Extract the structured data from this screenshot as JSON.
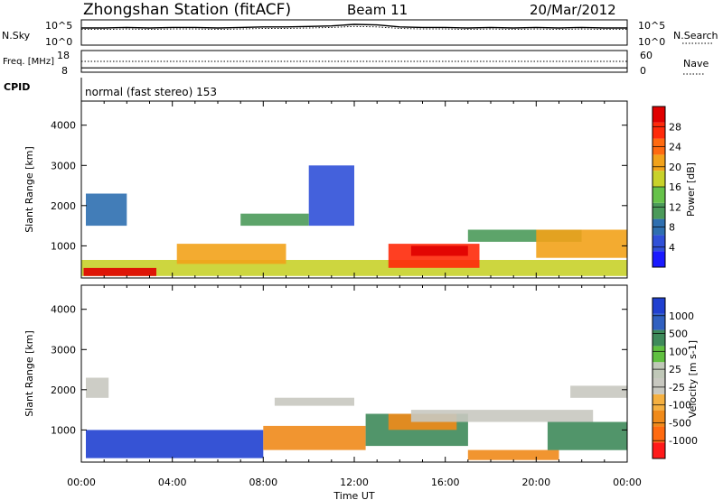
{
  "header": {
    "station": "Zhongshan Station (fitACF)",
    "beam": "Beam 11",
    "date": "20/Mar/2012",
    "cpid_label": "CPID",
    "cpid_value": "normal (fast stereo) 153"
  },
  "colors": {
    "power_scale": [
      "#1a1aff",
      "#3050d8",
      "#2e6fb0",
      "#4b9a5a",
      "#66c24a",
      "#c8d22a",
      "#f2a21a",
      "#ff6a10",
      "#ff2a0a",
      "#e00000"
    ],
    "velocity_scale": [
      "#ff1a1a",
      "#ff6a10",
      "#f08a1a",
      "#f5b040",
      "#c8c8c0",
      "#c0c8b8",
      "#60c040",
      "#3e8a5a",
      "#3060c0",
      "#2040d0"
    ]
  },
  "chart_data": [
    {
      "type": "line",
      "name": "nsky-nsearch-panel",
      "left_label": "N.Sky",
      "right_label": "N.Search",
      "left_ticks": [
        "10^5",
        "10^0"
      ],
      "right_ticks": [
        "10^5",
        "10^0"
      ],
      "series": [
        {
          "name": "N.Sky",
          "values": [
            3.4,
            3.4,
            3.5,
            3.4,
            3.5,
            3.5,
            3.4,
            3.5,
            3.6,
            3.6,
            3.7,
            3.8,
            4.1,
            4.0,
            3.6,
            3.5,
            3.5,
            3.4,
            3.5,
            3.4,
            3.5,
            3.4,
            3.5,
            3.4,
            3.4
          ]
        },
        {
          "name": "N.Search",
          "values": [
            3.1,
            3.1,
            3.2,
            3.1,
            3.2,
            3.2,
            3.1,
            3.2,
            3.3,
            3.3,
            3.4,
            3.5,
            3.7,
            3.6,
            3.3,
            3.2,
            3.2,
            3.1,
            3.2,
            3.1,
            3.2,
            3.1,
            3.2,
            3.1,
            3.1
          ]
        }
      ],
      "x": [
        0,
        1,
        2,
        3,
        4,
        5,
        6,
        7,
        8,
        9,
        10,
        11,
        12,
        13,
        14,
        15,
        16,
        17,
        18,
        19,
        20,
        21,
        22,
        23,
        24
      ],
      "ylim": [
        0,
        5
      ]
    },
    {
      "type": "line",
      "name": "freq-nave-panel",
      "left_label": "Freq. [MHz]",
      "right_label": "Nave",
      "left_ticks": [
        "18",
        "8"
      ],
      "right_ticks": [
        "60",
        "0"
      ],
      "series": [
        {
          "name": "Freq",
          "values": [
            10,
            10,
            10,
            10,
            10,
            10,
            10,
            10,
            10,
            10,
            10,
            10,
            10,
            10,
            10,
            10,
            10,
            10,
            10,
            10,
            10,
            10,
            10,
            10,
            10
          ]
        },
        {
          "name": "Nave",
          "values": [
            30,
            30,
            30,
            30,
            30,
            30,
            30,
            30,
            30,
            30,
            30,
            30,
            30,
            30,
            30,
            30,
            30,
            30,
            30,
            30,
            30,
            30,
            30,
            30,
            30
          ]
        }
      ],
      "x": [
        0,
        1,
        2,
        3,
        4,
        5,
        6,
        7,
        8,
        9,
        10,
        11,
        12,
        13,
        14,
        15,
        16,
        17,
        18,
        19,
        20,
        21,
        22,
        23,
        24
      ]
    },
    {
      "type": "heatmap",
      "name": "power-panel",
      "ylabel": "Slant Range [km]",
      "yticks": [
        1000,
        2000,
        3000,
        4000
      ],
      "ylim": [
        200,
        4600
      ],
      "colorbar_label": "Power [dB]",
      "colorbar_ticks": [
        "4",
        "8",
        "12",
        "16",
        "20",
        "24",
        "28"
      ],
      "features": [
        {
          "t0": 0.0,
          "t1": 24.0,
          "r0": 250,
          "r1": 650,
          "level": 5
        },
        {
          "t0": 0.1,
          "t1": 3.3,
          "r0": 250,
          "r1": 450,
          "level": 9
        },
        {
          "t0": 4.2,
          "t1": 9.0,
          "r0": 550,
          "r1": 1050,
          "level": 6
        },
        {
          "t0": 13.5,
          "t1": 17.5,
          "r0": 450,
          "r1": 1050,
          "level": 8
        },
        {
          "t0": 14.5,
          "t1": 17.0,
          "r0": 750,
          "r1": 1000,
          "level": 9
        },
        {
          "t0": 17.0,
          "t1": 22.0,
          "r0": 1100,
          "r1": 1400,
          "level": 3
        },
        {
          "t0": 20.0,
          "t1": 24.0,
          "r0": 700,
          "r1": 1400,
          "level": 6
        },
        {
          "t0": 10.0,
          "t1": 12.0,
          "r0": 1500,
          "r1": 3000,
          "level": 1
        },
        {
          "t0": 0.2,
          "t1": 2.0,
          "r0": 1500,
          "r1": 2300,
          "level": 2
        },
        {
          "t0": 7.0,
          "t1": 10.0,
          "r0": 1500,
          "r1": 1800,
          "level": 3
        }
      ]
    },
    {
      "type": "heatmap",
      "name": "velocity-panel",
      "xlabel": "Time UT",
      "x_ticks": [
        "00:00",
        "04:00",
        "08:00",
        "12:00",
        "16:00",
        "20:00",
        "00:00"
      ],
      "ylabel": "Slant Range [km]",
      "yticks": [
        1000,
        2000,
        3000,
        4000
      ],
      "ylim": [
        200,
        4600
      ],
      "colorbar_label": "Velocity [m s-1]",
      "colorbar_ticks": [
        "-1000",
        "-500",
        "-100",
        "-25",
        "25",
        "100",
        "500",
        "1000"
      ],
      "features": [
        {
          "t0": 0.2,
          "t1": 8.0,
          "r0": 300,
          "r1": 1000,
          "level": 9
        },
        {
          "t0": 8.0,
          "t1": 12.5,
          "r0": 500,
          "r1": 1100,
          "level": 2
        },
        {
          "t0": 12.5,
          "t1": 17.0,
          "r0": 600,
          "r1": 1400,
          "level": 7
        },
        {
          "t0": 13.5,
          "t1": 16.5,
          "r0": 1000,
          "r1": 1400,
          "level": 2
        },
        {
          "t0": 14.5,
          "t1": 22.5,
          "r0": 1200,
          "r1": 1500,
          "level": 4
        },
        {
          "t0": 17.0,
          "t1": 21.0,
          "r0": 250,
          "r1": 500,
          "level": 2
        },
        {
          "t0": 20.5,
          "t1": 24.0,
          "r0": 500,
          "r1": 1200,
          "level": 7
        },
        {
          "t0": 0.2,
          "t1": 1.2,
          "r0": 1800,
          "r1": 2300,
          "level": 4
        },
        {
          "t0": 8.5,
          "t1": 12.0,
          "r0": 1600,
          "r1": 1800,
          "level": 4
        },
        {
          "t0": 21.5,
          "t1": 24.0,
          "r0": 1800,
          "r1": 2100,
          "level": 4
        }
      ]
    }
  ]
}
